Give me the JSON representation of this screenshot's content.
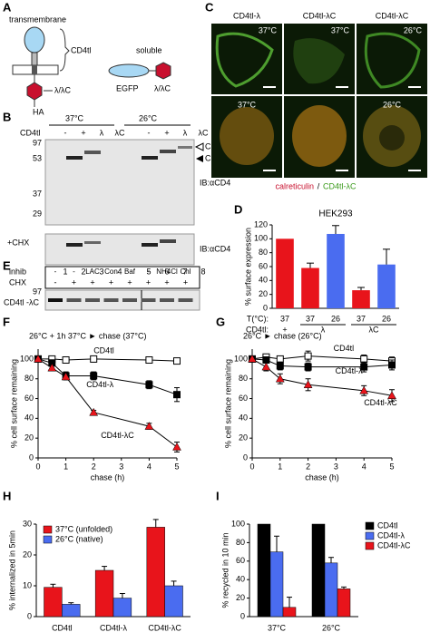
{
  "panel_labels": [
    "A",
    "B",
    "C",
    "D",
    "E",
    "F",
    "G",
    "H",
    "I"
  ],
  "panel_a": {
    "labels": [
      "transmembrane",
      "CD4tl",
      "λ/λC",
      "HA",
      "soluble",
      "EGFP",
      "λ/λC"
    ]
  },
  "panel_b": {
    "temps": [
      "37°C",
      "26°C"
    ],
    "row_label": "CD4tl",
    "lanes_top": [
      "-",
      "+",
      "λ",
      "λC",
      "-",
      "+",
      "λ",
      "λC"
    ],
    "mw": [
      "97",
      "53",
      "37",
      "29"
    ],
    "bands": [
      "CD4tl-λC",
      "CD4tl"
    ],
    "ib": [
      "IB:αCD4",
      "IB:αCD4"
    ],
    "chx": "+CHX",
    "lane_numbers": [
      "1",
      "2",
      "3",
      "4",
      "5",
      "6",
      "7",
      "8"
    ]
  },
  "panel_c": {
    "columns": [
      "CD4tl-λ",
      "CD4tl-λC",
      "CD4tl-λC"
    ],
    "temps": [
      "37°C",
      "37°C",
      "26°C",
      "37°C",
      "26°C"
    ],
    "caption_red": "calreticulin",
    "caption_sep": "/",
    "caption_green": "CD4tl-λC"
  },
  "panel_e": {
    "row_labels": [
      "inhib",
      "CHX"
    ],
    "inhib": [
      "-",
      "-",
      "LAC",
      "Con",
      "Baf",
      "-",
      "NH4Cl",
      "Chl"
    ],
    "chx": [
      "-",
      "+",
      "+",
      "+",
      "+",
      "+",
      "+",
      "+"
    ],
    "mw": "97",
    "band": "CD4tl -λC"
  },
  "chart_data": [
    {
      "type": "bar",
      "title": "HEK293",
      "ylabel": "% surface expression",
      "row_labels": [
        "T(°C):",
        "CD4tl:"
      ],
      "categories": [
        "37",
        "37",
        "26",
        "37",
        "26"
      ],
      "groups": [
        "+",
        "λ",
        "λC"
      ],
      "values": [
        100,
        58,
        107,
        26,
        63
      ],
      "errors": [
        null,
        7,
        12,
        4,
        22
      ],
      "colors": [
        "#e8141b",
        "#e8141b",
        "#4a6cf0",
        "#e8141b",
        "#4a6cf0"
      ],
      "ylim": [
        0,
        120
      ],
      "yticks": [
        0,
        20,
        40,
        60,
        80,
        100,
        120
      ]
    },
    {
      "type": "line",
      "title": "26°C + 1h 37°C ► chase (37°C)",
      "xlabel": "chase (h)",
      "ylabel": "% cell surface remaining",
      "x": [
        0,
        0.5,
        1,
        2,
        4,
        5
      ],
      "xlim": [
        0,
        5
      ],
      "xticks": [
        0,
        1,
        2,
        3,
        4,
        5
      ],
      "ylim": [
        0,
        110
      ],
      "yticks": [
        0,
        20,
        40,
        60,
        80,
        100
      ],
      "series": [
        {
          "name": "CD4tl",
          "color": "#ffffff",
          "marker": "open-square",
          "values": [
            100,
            100,
            99,
            100,
            99,
            98
          ],
          "errors": [
            1,
            2,
            2,
            3,
            2,
            2
          ]
        },
        {
          "name": "CD4tl-λ",
          "color": "#000000",
          "marker": "square",
          "values": [
            100,
            96,
            83,
            83,
            74,
            64
          ],
          "errors": [
            1,
            3,
            4,
            4,
            4,
            7
          ]
        },
        {
          "name": "CD4tl-λC",
          "color": "#e8141b",
          "marker": "triangle",
          "values": [
            100,
            91,
            82,
            46,
            32,
            11
          ],
          "errors": [
            1,
            2,
            3,
            2,
            3,
            5
          ]
        }
      ]
    },
    {
      "type": "line",
      "title": "26°C ► chase (26°C)",
      "xlabel": "chase (h)",
      "ylabel": "% cell surface remaining",
      "x": [
        0,
        0.5,
        1,
        2,
        4,
        5
      ],
      "xlim": [
        0,
        5
      ],
      "xticks": [
        0,
        1,
        2,
        3,
        4,
        5
      ],
      "ylim": [
        0,
        110
      ],
      "yticks": [
        0,
        20,
        40,
        60,
        80,
        100
      ],
      "series": [
        {
          "name": "CD4tl",
          "color": "#ffffff",
          "marker": "open-square",
          "values": [
            100,
            102,
            100,
            103,
            100,
            98
          ],
          "errors": [
            1,
            3,
            3,
            5,
            4,
            4
          ]
        },
        {
          "name": "CD4tl-λ",
          "color": "#000000",
          "marker": "square",
          "values": [
            100,
            99,
            93,
            92,
            92,
            94
          ],
          "errors": [
            1,
            3,
            4,
            4,
            5,
            5
          ]
        },
        {
          "name": "CD4tl-λC",
          "color": "#e8141b",
          "marker": "triangle",
          "values": [
            100,
            92,
            80,
            74,
            68,
            63
          ],
          "errors": [
            1,
            4,
            5,
            6,
            5,
            6
          ]
        }
      ]
    },
    {
      "type": "grouped-bar",
      "ylabel": "% internalized in 5min",
      "legend": "upper left",
      "categories": [
        "CD4tl",
        "CD4tl-λ",
        "CD4tl-λC"
      ],
      "ylim": [
        0,
        30
      ],
      "yticks": [
        0,
        10,
        20,
        30
      ],
      "series": [
        {
          "name": "37°C (unfolded)",
          "color": "#e8141b",
          "values": [
            9.5,
            15,
            29
          ],
          "errors": [
            1,
            1.3,
            2.5
          ]
        },
        {
          "name": "26°C (native)",
          "color": "#4a6cf0",
          "values": [
            4,
            6,
            10
          ],
          "errors": [
            0.5,
            1.5,
            1.5
          ]
        }
      ]
    },
    {
      "type": "grouped-bar",
      "ylabel": "% recycled in 10 min",
      "legend": "right",
      "categories": [
        "37°C",
        "26°C"
      ],
      "ylim": [
        0,
        100
      ],
      "yticks": [
        0,
        20,
        40,
        60,
        80,
        100
      ],
      "series": [
        {
          "name": "CD4tl",
          "color": "#000000",
          "values": [
            100,
            100
          ],
          "errors": [
            null,
            null
          ]
        },
        {
          "name": "CD4tl-λ",
          "color": "#4a6cf0",
          "values": [
            70,
            58
          ],
          "errors": [
            17,
            6
          ]
        },
        {
          "name": "CD4tl-λC",
          "color": "#e8141b",
          "values": [
            10,
            30
          ],
          "errors": [
            11,
            2
          ]
        }
      ]
    }
  ]
}
